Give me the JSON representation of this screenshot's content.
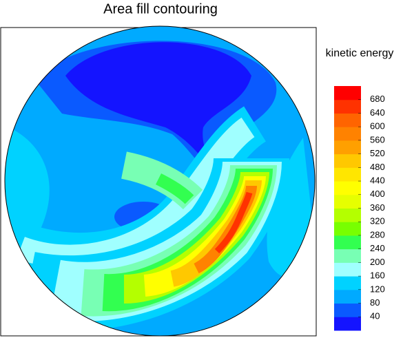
{
  "chart_data": {
    "type": "contour",
    "title": "Area fill contouring",
    "colorbar_label": "kinetic energy",
    "levels": [
      40,
      80,
      120,
      160,
      200,
      240,
      280,
      320,
      360,
      400,
      440,
      480,
      520,
      560,
      600,
      640,
      680
    ],
    "colors": [
      "#1414ff",
      "#0a5aff",
      "#00aaff",
      "#00d2ff",
      "#a0ffff",
      "#78ffb4",
      "#32ff50",
      "#78ff00",
      "#b4ff00",
      "#e6ff00",
      "#ffff00",
      "#ffe600",
      "#ffc800",
      "#ffa000",
      "#ff8200",
      "#ff6400",
      "#ff3200",
      "#ff0000"
    ]
  }
}
